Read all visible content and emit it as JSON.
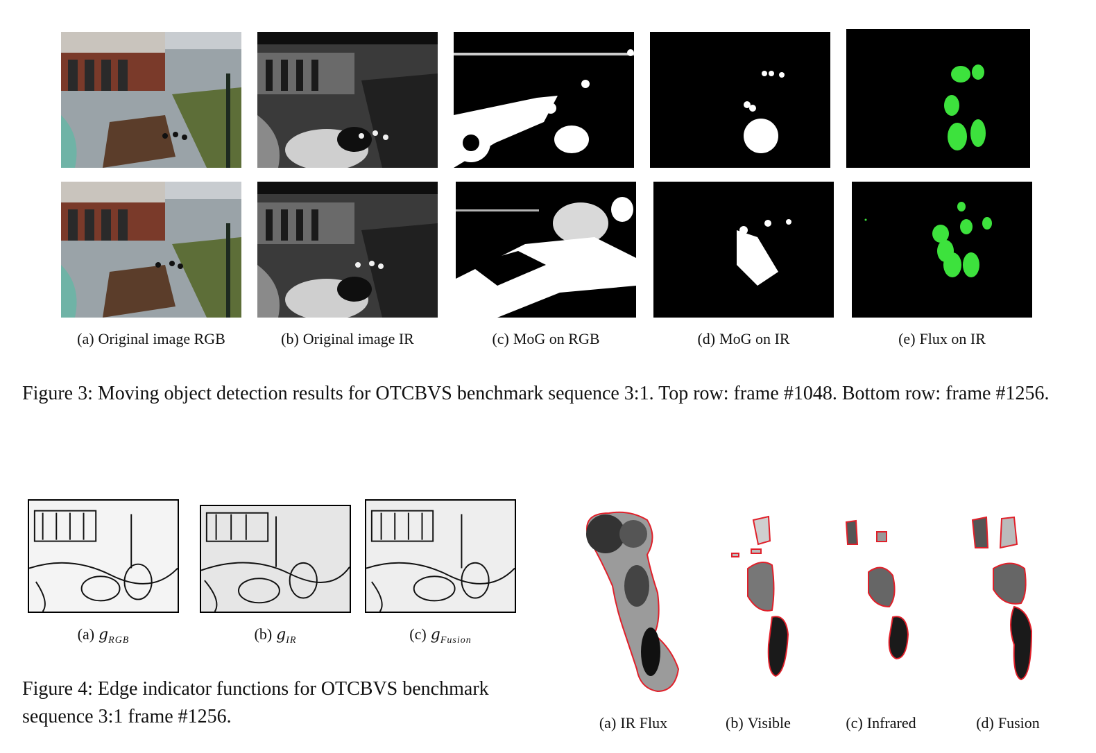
{
  "figure3": {
    "subcaptions": [
      {
        "label": "(a)",
        "text": "Original image RGB"
      },
      {
        "label": "(b)",
        "text": "Original image IR"
      },
      {
        "label": "(c)",
        "text": "MoG on RGB"
      },
      {
        "label": "(d)",
        "text": "MoG on IR"
      },
      {
        "label": "(e)",
        "text": "Flux on IR"
      }
    ],
    "caption": "Figure 3: Moving object detection results for OTCBVS benchmark sequence 3:1. Top row: frame #1048. Bottom row: frame #1256."
  },
  "figure4": {
    "subcaptions": [
      {
        "label": "(a)",
        "symbol": "g",
        "subscript": "RGB"
      },
      {
        "label": "(b)",
        "symbol": "g",
        "subscript": "IR"
      },
      {
        "label": "(c)",
        "symbol": "g",
        "subscript": "Fusion"
      }
    ],
    "caption": "Figure 4: Edge indicator functions for OTCBVS benchmark sequence 3:1 frame #1256."
  },
  "figure5": {
    "subcaptions": [
      {
        "label": "(a)",
        "text": "IR Flux"
      },
      {
        "label": "(b)",
        "text": "Visible"
      },
      {
        "label": "(c)",
        "text": "Infrared"
      },
      {
        "label": "(d)",
        "text": "Fusion"
      }
    ]
  },
  "colors": {
    "detection_green": "#3de23d",
    "contour_red": "#e0202a"
  }
}
